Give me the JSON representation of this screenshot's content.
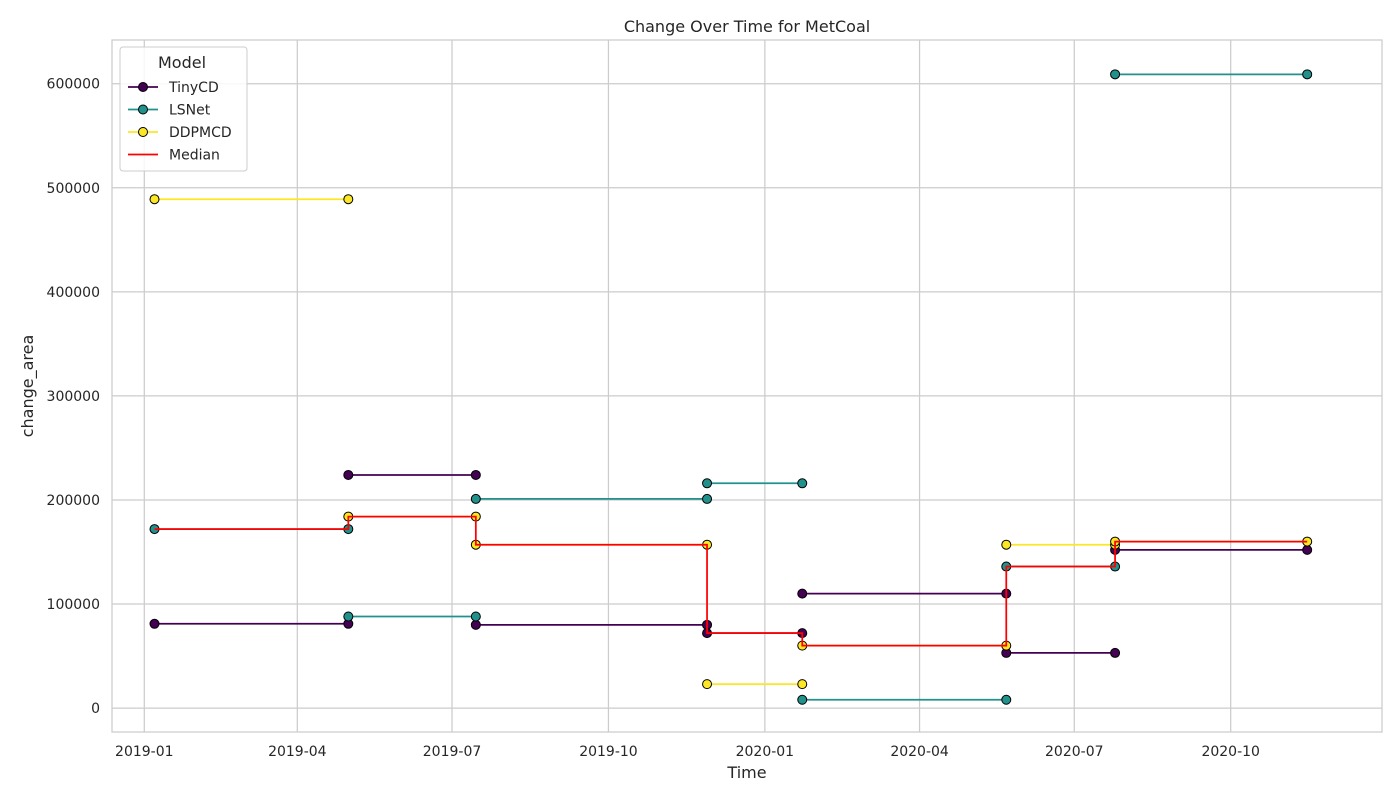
{
  "chart_data": {
    "type": "line",
    "title": "Change Over Time for MetCoal",
    "xlabel": "Time",
    "ylabel": "change_area",
    "xlim": [
      "2018-12-13",
      "2020-12-29"
    ],
    "ylim": [
      -23000,
      642000
    ],
    "grid": true,
    "legend": {
      "title": "Model",
      "placement": "top-left"
    },
    "x_ticks": [
      {
        "date": "2019-01-01",
        "label": "2019-01"
      },
      {
        "date": "2019-04-01",
        "label": "2019-04"
      },
      {
        "date": "2019-07-01",
        "label": "2019-07"
      },
      {
        "date": "2019-10-01",
        "label": "2019-10"
      },
      {
        "date": "2020-01-01",
        "label": "2020-01"
      },
      {
        "date": "2020-04-01",
        "label": "2020-04"
      },
      {
        "date": "2020-07-01",
        "label": "2020-07"
      },
      {
        "date": "2020-10-01",
        "label": "2020-10"
      }
    ],
    "y_ticks": [
      {
        "value": 0,
        "label": "0"
      },
      {
        "value": 100000,
        "label": "100000"
      },
      {
        "value": 200000,
        "label": "200000"
      },
      {
        "value": 300000,
        "label": "300000"
      },
      {
        "value": 400000,
        "label": "400000"
      },
      {
        "value": 500000,
        "label": "500000"
      },
      {
        "value": 600000,
        "label": "600000"
      }
    ],
    "series": [
      {
        "name": "TinyCD",
        "color": "#440154",
        "marker": true,
        "segments": [
          [
            {
              "x": "2019-01-07",
              "y": 81000
            },
            {
              "x": "2019-05-01",
              "y": 81000
            }
          ],
          [
            {
              "x": "2019-05-01",
              "y": 224000
            },
            {
              "x": "2019-07-15",
              "y": 224000
            }
          ],
          [
            {
              "x": "2019-07-15",
              "y": 80000
            },
            {
              "x": "2019-11-28",
              "y": 80000
            }
          ],
          [
            {
              "x": "2019-11-28",
              "y": 72000
            },
            {
              "x": "2020-01-23",
              "y": 72000
            }
          ],
          [
            {
              "x": "2020-01-23",
              "y": 110000
            },
            {
              "x": "2020-05-22",
              "y": 110000
            }
          ],
          [
            {
              "x": "2020-05-22",
              "y": 53000
            },
            {
              "x": "2020-07-25",
              "y": 53000
            }
          ],
          [
            {
              "x": "2020-07-25",
              "y": 152000
            },
            {
              "x": "2020-11-15",
              "y": 152000
            }
          ]
        ]
      },
      {
        "name": "LSNet",
        "color": "#21918c",
        "marker": true,
        "segments": [
          [
            {
              "x": "2019-01-07",
              "y": 172000
            },
            {
              "x": "2019-05-01",
              "y": 172000
            }
          ],
          [
            {
              "x": "2019-05-01",
              "y": 88000
            },
            {
              "x": "2019-07-15",
              "y": 88000
            }
          ],
          [
            {
              "x": "2019-07-15",
              "y": 201000
            },
            {
              "x": "2019-11-28",
              "y": 201000
            }
          ],
          [
            {
              "x": "2019-11-28",
              "y": 216000
            },
            {
              "x": "2020-01-23",
              "y": 216000
            }
          ],
          [
            {
              "x": "2020-01-23",
              "y": 8000
            },
            {
              "x": "2020-05-22",
              "y": 8000
            }
          ],
          [
            {
              "x": "2020-05-22",
              "y": 136000
            },
            {
              "x": "2020-07-25",
              "y": 136000
            }
          ],
          [
            {
              "x": "2020-07-25",
              "y": 609000
            },
            {
              "x": "2020-11-15",
              "y": 609000
            }
          ]
        ]
      },
      {
        "name": "DDPMCD",
        "color": "#fde725",
        "marker": true,
        "segments": [
          [
            {
              "x": "2019-01-07",
              "y": 489000
            },
            {
              "x": "2019-05-01",
              "y": 489000
            }
          ],
          [
            {
              "x": "2019-05-01",
              "y": 184000
            },
            {
              "x": "2019-07-15",
              "y": 184000
            }
          ],
          [
            {
              "x": "2019-07-15",
              "y": 157000
            },
            {
              "x": "2019-11-28",
              "y": 157000
            }
          ],
          [
            {
              "x": "2019-11-28",
              "y": 23000
            },
            {
              "x": "2020-01-23",
              "y": 23000
            }
          ],
          [
            {
              "x": "2020-01-23",
              "y": 60000
            },
            {
              "x": "2020-05-22",
              "y": 60000
            }
          ],
          [
            {
              "x": "2020-05-22",
              "y": 157000
            },
            {
              "x": "2020-07-25",
              "y": 157000
            }
          ],
          [
            {
              "x": "2020-07-25",
              "y": 160000
            },
            {
              "x": "2020-11-15",
              "y": 160000
            }
          ]
        ]
      },
      {
        "name": "Median",
        "color": "#ff0000",
        "marker": false,
        "points": [
          {
            "x": "2019-01-07",
            "y": 172000
          },
          {
            "x": "2019-05-01",
            "y": 172000
          },
          {
            "x": "2019-05-01",
            "y": 184000
          },
          {
            "x": "2019-07-15",
            "y": 184000
          },
          {
            "x": "2019-07-15",
            "y": 157000
          },
          {
            "x": "2019-11-28",
            "y": 157000
          },
          {
            "x": "2019-11-28",
            "y": 72000
          },
          {
            "x": "2020-01-23",
            "y": 72000
          },
          {
            "x": "2020-01-23",
            "y": 60000
          },
          {
            "x": "2020-05-22",
            "y": 60000
          },
          {
            "x": "2020-05-22",
            "y": 136000
          },
          {
            "x": "2020-07-25",
            "y": 136000
          },
          {
            "x": "2020-07-25",
            "y": 160000
          },
          {
            "x": "2020-11-15",
            "y": 160000
          }
        ]
      }
    ]
  }
}
